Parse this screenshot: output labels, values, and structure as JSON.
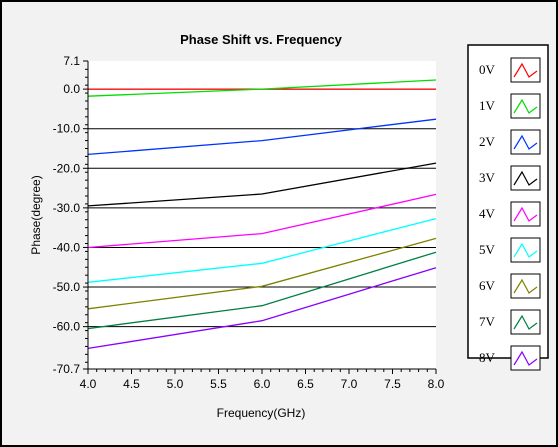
{
  "chart_data": {
    "type": "line",
    "title": "Phase Shift vs. Frequency",
    "xlabel": "Frequency(GHz)",
    "ylabel": "Phase(degree)",
    "xlim": [
      4.0,
      8.0
    ],
    "ylim": [
      -70.7,
      7.1
    ],
    "x": [
      4.0,
      6.0,
      8.0
    ],
    "xticks": [
      4.0,
      4.5,
      5.0,
      5.5,
      6.0,
      6.5,
      7.0,
      7.5,
      8.0
    ],
    "xtick_labels": [
      "4.0",
      "4.5",
      "5.0",
      "5.5",
      "6.0",
      "6.5",
      "7.0",
      "7.5",
      "8.0"
    ],
    "yticks": [
      7.1,
      0.0,
      -10.0,
      -20.0,
      -30.0,
      -40.0,
      -50.0,
      -60.0,
      -70.7
    ],
    "ytick_labels": [
      "7.1",
      "0.0",
      "-10.0",
      "-20.0",
      "-30.0",
      "-40.0",
      "-50.0",
      "-60.0",
      "-70.7"
    ],
    "grid": true,
    "legend_position": "right",
    "series": [
      {
        "name": "0V",
        "color": "#ff0000",
        "values": [
          0.0,
          0.0,
          0.0
        ]
      },
      {
        "name": "1V",
        "color": "#00dd00",
        "values": [
          -1.8,
          0.0,
          2.3
        ]
      },
      {
        "name": "2V",
        "color": "#0033ff",
        "values": [
          -16.5,
          -13.0,
          -7.6
        ]
      },
      {
        "name": "3V",
        "color": "#000000",
        "values": [
          -29.5,
          -26.5,
          -18.7
        ]
      },
      {
        "name": "4V",
        "color": "#ff00ff",
        "values": [
          -40.0,
          -36.5,
          -26.6
        ]
      },
      {
        "name": "5V",
        "color": "#00ffff",
        "values": [
          -48.8,
          -44.0,
          -32.7
        ]
      },
      {
        "name": "6V",
        "color": "#808000",
        "values": [
          -55.5,
          -49.8,
          -37.7
        ]
      },
      {
        "name": "7V",
        "color": "#008040",
        "values": [
          -60.5,
          -54.7,
          -41.2
        ]
      },
      {
        "name": "8V",
        "color": "#8800ff",
        "values": [
          -65.5,
          -58.5,
          -45.1
        ]
      }
    ]
  }
}
